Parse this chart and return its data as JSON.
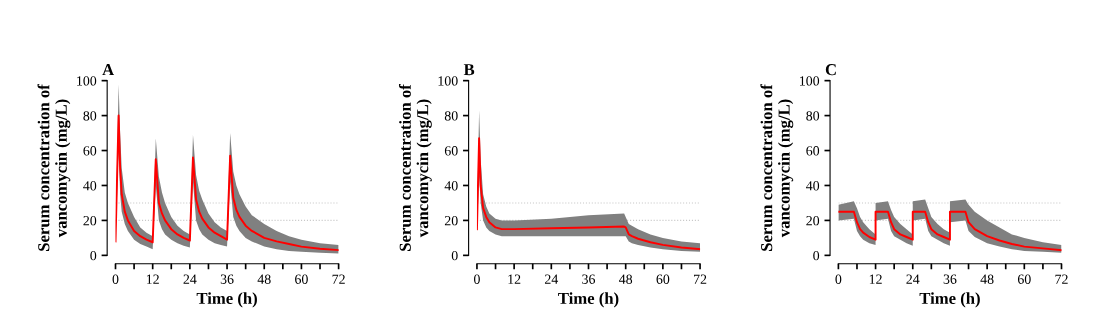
{
  "chart_data": [
    {
      "type": "line",
      "title": "A",
      "xlabel": "Time (h)",
      "ylabel": "Serum concentration of\nvancomycin (mg/L)",
      "xlim": [
        0,
        72
      ],
      "ylim": [
        0,
        100
      ],
      "xticks": [
        0,
        {
          "value": 6,
          "label": null
        },
        12,
        {
          "value": 18,
          "label": null
        },
        24,
        {
          "value": 30,
          "label": null
        },
        36,
        {
          "value": 42,
          "label": null
        },
        48,
        {
          "value": 54,
          "label": null
        },
        60,
        {
          "value": 66,
          "label": null
        },
        72
      ],
      "yticks": [
        0,
        20,
        40,
        60,
        80,
        100
      ],
      "grid": false,
      "legend": false,
      "marker": "none",
      "line_style": "solid",
      "ref_lines": [
        {
          "axis": "y",
          "value": 20,
          "label": null,
          "color": "#c8c8c8",
          "line_style": "dotted"
        },
        {
          "axis": "y",
          "value": 30,
          "label": null,
          "color": "#c8c8c8",
          "line_style": "dotted"
        }
      ],
      "series": [
        {
          "color": "#ff0000",
          "x": [
            0,
            1,
            1.5,
            2,
            3,
            4,
            6,
            8,
            10,
            12,
            13,
            14,
            15,
            16,
            18,
            20,
            22,
            24,
            25,
            26,
            27,
            28,
            30,
            32,
            34,
            36,
            37,
            38,
            39,
            40,
            42,
            44,
            48,
            52,
            56,
            60,
            66,
            72
          ],
          "values": [
            8,
            80,
            50,
            35,
            25,
            20,
            14,
            11,
            9,
            7.5,
            55,
            30,
            24,
            20,
            15,
            12,
            10,
            8.5,
            56,
            32,
            25,
            21,
            16,
            13,
            11,
            9,
            57,
            33,
            26,
            22,
            17,
            14,
            10,
            8,
            6.5,
            5,
            3.8,
            3
          ],
          "upper": [
            10,
            98,
            70,
            50,
            36,
            30,
            22,
            16,
            13,
            11,
            67,
            45,
            36,
            30,
            22,
            17,
            14,
            12,
            69,
            46,
            37,
            32,
            24,
            19,
            16,
            14,
            70,
            48,
            40,
            35,
            28,
            23,
            18,
            14,
            11,
            9,
            7,
            6
          ],
          "lower": [
            7,
            60,
            35,
            25,
            18,
            14,
            9,
            6.5,
            5,
            3.5,
            40,
            20,
            15,
            12,
            9,
            7,
            5.5,
            4.5,
            42,
            20,
            15,
            12,
            9,
            7,
            6,
            5,
            42,
            22,
            17,
            14,
            10,
            8,
            5,
            3.5,
            2.5,
            2,
            1.5,
            1
          ]
        }
      ]
    },
    {
      "type": "line",
      "title": "B",
      "xlabel": "Time (h)",
      "ylabel": "Serum concentration of\nvancomycin (mg/L)",
      "xlim": [
        0,
        72
      ],
      "ylim": [
        0,
        100
      ],
      "xticks": [
        0,
        {
          "value": 6,
          "label": null
        },
        12,
        {
          "value": 18,
          "label": null
        },
        24,
        {
          "value": 30,
          "label": null
        },
        36,
        {
          "value": 42,
          "label": null
        },
        48,
        {
          "value": 54,
          "label": null
        },
        60,
        {
          "value": 66,
          "label": null
        },
        72
      ],
      "yticks": [
        0,
        20,
        40,
        60,
        80,
        100
      ],
      "grid": false,
      "legend": false,
      "marker": "none",
      "line_style": "solid",
      "ref_lines": [
        {
          "axis": "y",
          "value": 20,
          "label": null,
          "color": "#c8c8c8",
          "line_style": "dotted"
        },
        {
          "axis": "y",
          "value": 30,
          "label": null,
          "color": "#c8c8c8",
          "line_style": "dotted"
        }
      ],
      "series": [
        {
          "color": "#ff0000",
          "x": [
            0,
            0.7,
            1.2,
            2,
            3,
            4,
            6,
            8,
            12,
            24,
            36,
            47.5,
            48,
            49,
            50,
            52,
            56,
            60,
            66,
            72
          ],
          "values": [
            15,
            67,
            40,
            27,
            22,
            19,
            16,
            15,
            15,
            15.5,
            16,
            16.5,
            16,
            12,
            11,
            9.5,
            7.5,
            6,
            4.5,
            3.5
          ],
          "upper": [
            20,
            83,
            55,
            35,
            28,
            24,
            21,
            20,
            20,
            21,
            23,
            24,
            22,
            18,
            17,
            15,
            12,
            10,
            8,
            7
          ],
          "lower": [
            13,
            45,
            30,
            20,
            16,
            14,
            12,
            11,
            11,
            11,
            11,
            11,
            11,
            8,
            7,
            6,
            4.5,
            3.5,
            2.5,
            2
          ]
        }
      ]
    },
    {
      "type": "line",
      "title": "C",
      "xlabel": "Time (h)",
      "ylabel": "Serum concentration of\nvancomycin (mg/L)",
      "xlim": [
        0,
        72
      ],
      "ylim": [
        0,
        100
      ],
      "xticks": [
        0,
        {
          "value": 6,
          "label": null
        },
        12,
        {
          "value": 18,
          "label": null
        },
        24,
        {
          "value": 30,
          "label": null
        },
        36,
        {
          "value": 42,
          "label": null
        },
        48,
        {
          "value": 54,
          "label": null
        },
        60,
        {
          "value": 66,
          "label": null
        },
        72
      ],
      "yticks": [
        0,
        20,
        40,
        60,
        80,
        100
      ],
      "grid": false,
      "legend": false,
      "marker": "none",
      "line_style": "solid",
      "ref_lines": [
        {
          "axis": "y",
          "value": 20,
          "label": null,
          "color": "#c8c8c8",
          "line_style": "dotted"
        },
        {
          "axis": "y",
          "value": 30,
          "label": null,
          "color": "#c8c8c8",
          "line_style": "dotted"
        }
      ],
      "series": [
        {
          "color": "#ff0000",
          "x": [
            0,
            5,
            6,
            7,
            8,
            10,
            12,
            12,
            16,
            17,
            18,
            20,
            22,
            24,
            24,
            28,
            29,
            30,
            32,
            34,
            36,
            36,
            41,
            42,
            44,
            48,
            52,
            56,
            60,
            66,
            72
          ],
          "values": [
            25,
            25,
            19,
            15,
            13,
            10.5,
            9,
            25,
            25,
            19,
            15,
            12,
            10.5,
            9,
            25,
            25,
            19,
            15,
            12,
            10.5,
            9,
            25,
            25,
            19,
            15,
            11,
            8.5,
            6.5,
            5,
            4,
            3
          ],
          "upper": [
            29,
            31,
            27,
            22,
            19,
            15,
            12,
            30,
            31,
            26,
            22,
            18,
            15,
            12,
            31,
            32,
            27,
            22,
            18,
            15,
            13,
            31,
            32,
            29,
            25,
            20,
            16,
            12,
            10,
            7.5,
            6
          ],
          "lower": [
            20,
            21,
            14,
            11,
            9,
            7,
            6,
            20,
            21,
            14,
            11,
            9,
            7,
            5.5,
            20,
            21,
            14,
            11,
            9,
            7,
            5.5,
            19,
            20,
            14,
            10.5,
            7,
            5,
            3.5,
            2.5,
            2,
            1.5
          ]
        }
      ]
    }
  ]
}
